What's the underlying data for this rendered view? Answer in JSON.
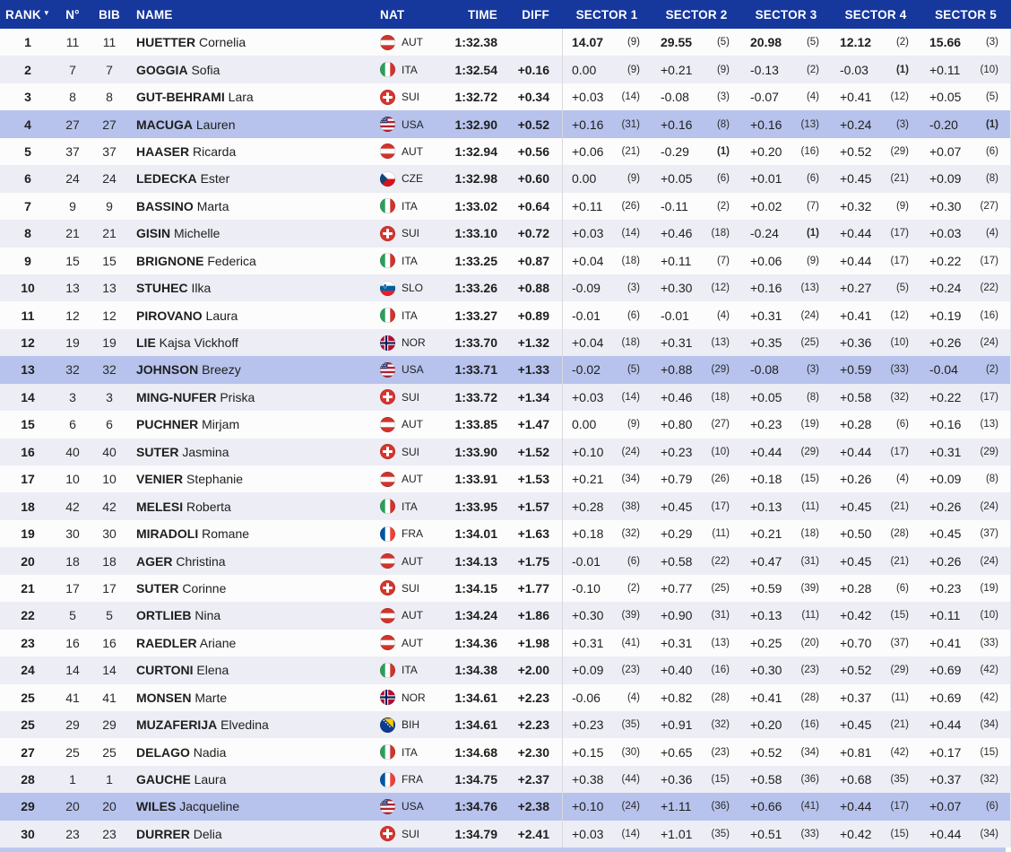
{
  "colors": {
    "header_bg": "#16389d",
    "row_alt_bg": "#ededf5",
    "row_highlight_bg": "#b7c3ec",
    "bottom_strip": "#b9c8ee"
  },
  "header": {
    "rank": "RANK",
    "sort_icon": "▼",
    "n": "N°",
    "bib": "BIB",
    "name": "NAME",
    "nat": "NAT",
    "time": "TIME",
    "diff": "DIFF",
    "sectors": [
      "SECTOR 1",
      "SECTOR 2",
      "SECTOR 3",
      "SECTOR 4",
      "SECTOR 5"
    ]
  },
  "rows": [
    {
      "rank": "1",
      "n": "11",
      "bib": "11",
      "last": "HUETTER",
      "first": "Cornelia",
      "nat": "AUT",
      "time": "1:32.38",
      "diff": "",
      "leader": true,
      "highlight": false,
      "sectors": [
        {
          "v": "14.07",
          "r": "(9)"
        },
        {
          "v": "29.55",
          "r": "(5)"
        },
        {
          "v": "20.98",
          "r": "(5)"
        },
        {
          "v": "12.12",
          "r": "(2)"
        },
        {
          "v": "15.66",
          "r": "(3)"
        }
      ]
    },
    {
      "rank": "2",
      "n": "7",
      "bib": "7",
      "last": "GOGGIA",
      "first": "Sofia",
      "nat": "ITA",
      "time": "1:32.54",
      "diff": "+0.16",
      "leader": false,
      "highlight": false,
      "sectors": [
        {
          "v": "0.00",
          "r": "(9)"
        },
        {
          "v": "+0.21",
          "r": "(9)"
        },
        {
          "v": "-0.13",
          "r": "(2)"
        },
        {
          "v": "-0.03",
          "r": "(1)"
        },
        {
          "v": "+0.11",
          "r": "(10)"
        }
      ]
    },
    {
      "rank": "3",
      "n": "8",
      "bib": "8",
      "last": "GUT-BEHRAMI",
      "first": "Lara",
      "nat": "SUI",
      "time": "1:32.72",
      "diff": "+0.34",
      "leader": false,
      "highlight": false,
      "sectors": [
        {
          "v": "+0.03",
          "r": "(14)"
        },
        {
          "v": "-0.08",
          "r": "(3)"
        },
        {
          "v": "-0.07",
          "r": "(4)"
        },
        {
          "v": "+0.41",
          "r": "(12)"
        },
        {
          "v": "+0.05",
          "r": "(5)"
        }
      ]
    },
    {
      "rank": "4",
      "n": "27",
      "bib": "27",
      "last": "MACUGA",
      "first": "Lauren",
      "nat": "USA",
      "time": "1:32.90",
      "diff": "+0.52",
      "leader": false,
      "highlight": true,
      "sectors": [
        {
          "v": "+0.16",
          "r": "(31)"
        },
        {
          "v": "+0.16",
          "r": "(8)"
        },
        {
          "v": "+0.16",
          "r": "(13)"
        },
        {
          "v": "+0.24",
          "r": "(3)"
        },
        {
          "v": "-0.20",
          "r": "(1)"
        }
      ]
    },
    {
      "rank": "5",
      "n": "37",
      "bib": "37",
      "last": "HAASER",
      "first": "Ricarda",
      "nat": "AUT",
      "time": "1:32.94",
      "diff": "+0.56",
      "leader": false,
      "highlight": false,
      "sectors": [
        {
          "v": "+0.06",
          "r": "(21)"
        },
        {
          "v": "-0.29",
          "r": "(1)"
        },
        {
          "v": "+0.20",
          "r": "(16)"
        },
        {
          "v": "+0.52",
          "r": "(29)"
        },
        {
          "v": "+0.07",
          "r": "(6)"
        }
      ]
    },
    {
      "rank": "6",
      "n": "24",
      "bib": "24",
      "last": "LEDECKA",
      "first": "Ester",
      "nat": "CZE",
      "time": "1:32.98",
      "diff": "+0.60",
      "leader": false,
      "highlight": false,
      "sectors": [
        {
          "v": "0.00",
          "r": "(9)"
        },
        {
          "v": "+0.05",
          "r": "(6)"
        },
        {
          "v": "+0.01",
          "r": "(6)"
        },
        {
          "v": "+0.45",
          "r": "(21)"
        },
        {
          "v": "+0.09",
          "r": "(8)"
        }
      ]
    },
    {
      "rank": "7",
      "n": "9",
      "bib": "9",
      "last": "BASSINO",
      "first": "Marta",
      "nat": "ITA",
      "time": "1:33.02",
      "diff": "+0.64",
      "leader": false,
      "highlight": false,
      "sectors": [
        {
          "v": "+0.11",
          "r": "(26)"
        },
        {
          "v": "-0.11",
          "r": "(2)"
        },
        {
          "v": "+0.02",
          "r": "(7)"
        },
        {
          "v": "+0.32",
          "r": "(9)"
        },
        {
          "v": "+0.30",
          "r": "(27)"
        }
      ]
    },
    {
      "rank": "8",
      "n": "21",
      "bib": "21",
      "last": "GISIN",
      "first": "Michelle",
      "nat": "SUI",
      "time": "1:33.10",
      "diff": "+0.72",
      "leader": false,
      "highlight": false,
      "sectors": [
        {
          "v": "+0.03",
          "r": "(14)"
        },
        {
          "v": "+0.46",
          "r": "(18)"
        },
        {
          "v": "-0.24",
          "r": "(1)"
        },
        {
          "v": "+0.44",
          "r": "(17)"
        },
        {
          "v": "+0.03",
          "r": "(4)"
        }
      ]
    },
    {
      "rank": "9",
      "n": "15",
      "bib": "15",
      "last": "BRIGNONE",
      "first": "Federica",
      "nat": "ITA",
      "time": "1:33.25",
      "diff": "+0.87",
      "leader": false,
      "highlight": false,
      "sectors": [
        {
          "v": "+0.04",
          "r": "(18)"
        },
        {
          "v": "+0.11",
          "r": "(7)"
        },
        {
          "v": "+0.06",
          "r": "(9)"
        },
        {
          "v": "+0.44",
          "r": "(17)"
        },
        {
          "v": "+0.22",
          "r": "(17)"
        }
      ]
    },
    {
      "rank": "10",
      "n": "13",
      "bib": "13",
      "last": "STUHEC",
      "first": "Ilka",
      "nat": "SLO",
      "time": "1:33.26",
      "diff": "+0.88",
      "leader": false,
      "highlight": false,
      "sectors": [
        {
          "v": "-0.09",
          "r": "(3)"
        },
        {
          "v": "+0.30",
          "r": "(12)"
        },
        {
          "v": "+0.16",
          "r": "(13)"
        },
        {
          "v": "+0.27",
          "r": "(5)"
        },
        {
          "v": "+0.24",
          "r": "(22)"
        }
      ]
    },
    {
      "rank": "11",
      "n": "12",
      "bib": "12",
      "last": "PIROVANO",
      "first": "Laura",
      "nat": "ITA",
      "time": "1:33.27",
      "diff": "+0.89",
      "leader": false,
      "highlight": false,
      "sectors": [
        {
          "v": "-0.01",
          "r": "(6)"
        },
        {
          "v": "-0.01",
          "r": "(4)"
        },
        {
          "v": "+0.31",
          "r": "(24)"
        },
        {
          "v": "+0.41",
          "r": "(12)"
        },
        {
          "v": "+0.19",
          "r": "(16)"
        }
      ]
    },
    {
      "rank": "12",
      "n": "19",
      "bib": "19",
      "last": "LIE",
      "first": "Kajsa Vickhoff",
      "nat": "NOR",
      "time": "1:33.70",
      "diff": "+1.32",
      "leader": false,
      "highlight": false,
      "sectors": [
        {
          "v": "+0.04",
          "r": "(18)"
        },
        {
          "v": "+0.31",
          "r": "(13)"
        },
        {
          "v": "+0.35",
          "r": "(25)"
        },
        {
          "v": "+0.36",
          "r": "(10)"
        },
        {
          "v": "+0.26",
          "r": "(24)"
        }
      ]
    },
    {
      "rank": "13",
      "n": "32",
      "bib": "32",
      "last": "JOHNSON",
      "first": "Breezy",
      "nat": "USA",
      "time": "1:33.71",
      "diff": "+1.33",
      "leader": false,
      "highlight": true,
      "sectors": [
        {
          "v": "-0.02",
          "r": "(5)"
        },
        {
          "v": "+0.88",
          "r": "(29)"
        },
        {
          "v": "-0.08",
          "r": "(3)"
        },
        {
          "v": "+0.59",
          "r": "(33)"
        },
        {
          "v": "-0.04",
          "r": "(2)"
        }
      ]
    },
    {
      "rank": "14",
      "n": "3",
      "bib": "3",
      "last": "MING-NUFER",
      "first": "Priska",
      "nat": "SUI",
      "time": "1:33.72",
      "diff": "+1.34",
      "leader": false,
      "highlight": false,
      "sectors": [
        {
          "v": "+0.03",
          "r": "(14)"
        },
        {
          "v": "+0.46",
          "r": "(18)"
        },
        {
          "v": "+0.05",
          "r": "(8)"
        },
        {
          "v": "+0.58",
          "r": "(32)"
        },
        {
          "v": "+0.22",
          "r": "(17)"
        }
      ]
    },
    {
      "rank": "15",
      "n": "6",
      "bib": "6",
      "last": "PUCHNER",
      "first": "Mirjam",
      "nat": "AUT",
      "time": "1:33.85",
      "diff": "+1.47",
      "leader": false,
      "highlight": false,
      "sectors": [
        {
          "v": "0.00",
          "r": "(9)"
        },
        {
          "v": "+0.80",
          "r": "(27)"
        },
        {
          "v": "+0.23",
          "r": "(19)"
        },
        {
          "v": "+0.28",
          "r": "(6)"
        },
        {
          "v": "+0.16",
          "r": "(13)"
        }
      ]
    },
    {
      "rank": "16",
      "n": "40",
      "bib": "40",
      "last": "SUTER",
      "first": "Jasmina",
      "nat": "SUI",
      "time": "1:33.90",
      "diff": "+1.52",
      "leader": false,
      "highlight": false,
      "sectors": [
        {
          "v": "+0.10",
          "r": "(24)"
        },
        {
          "v": "+0.23",
          "r": "(10)"
        },
        {
          "v": "+0.44",
          "r": "(29)"
        },
        {
          "v": "+0.44",
          "r": "(17)"
        },
        {
          "v": "+0.31",
          "r": "(29)"
        }
      ]
    },
    {
      "rank": "17",
      "n": "10",
      "bib": "10",
      "last": "VENIER",
      "first": "Stephanie",
      "nat": "AUT",
      "time": "1:33.91",
      "diff": "+1.53",
      "leader": false,
      "highlight": false,
      "sectors": [
        {
          "v": "+0.21",
          "r": "(34)"
        },
        {
          "v": "+0.79",
          "r": "(26)"
        },
        {
          "v": "+0.18",
          "r": "(15)"
        },
        {
          "v": "+0.26",
          "r": "(4)"
        },
        {
          "v": "+0.09",
          "r": "(8)"
        }
      ]
    },
    {
      "rank": "18",
      "n": "42",
      "bib": "42",
      "last": "MELESI",
      "first": "Roberta",
      "nat": "ITA",
      "time": "1:33.95",
      "diff": "+1.57",
      "leader": false,
      "highlight": false,
      "sectors": [
        {
          "v": "+0.28",
          "r": "(38)"
        },
        {
          "v": "+0.45",
          "r": "(17)"
        },
        {
          "v": "+0.13",
          "r": "(11)"
        },
        {
          "v": "+0.45",
          "r": "(21)"
        },
        {
          "v": "+0.26",
          "r": "(24)"
        }
      ]
    },
    {
      "rank": "19",
      "n": "30",
      "bib": "30",
      "last": "MIRADOLI",
      "first": "Romane",
      "nat": "FRA",
      "time": "1:34.01",
      "diff": "+1.63",
      "leader": false,
      "highlight": false,
      "sectors": [
        {
          "v": "+0.18",
          "r": "(32)"
        },
        {
          "v": "+0.29",
          "r": "(11)"
        },
        {
          "v": "+0.21",
          "r": "(18)"
        },
        {
          "v": "+0.50",
          "r": "(28)"
        },
        {
          "v": "+0.45",
          "r": "(37)"
        }
      ]
    },
    {
      "rank": "20",
      "n": "18",
      "bib": "18",
      "last": "AGER",
      "first": "Christina",
      "nat": "AUT",
      "time": "1:34.13",
      "diff": "+1.75",
      "leader": false,
      "highlight": false,
      "sectors": [
        {
          "v": "-0.01",
          "r": "(6)"
        },
        {
          "v": "+0.58",
          "r": "(22)"
        },
        {
          "v": "+0.47",
          "r": "(31)"
        },
        {
          "v": "+0.45",
          "r": "(21)"
        },
        {
          "v": "+0.26",
          "r": "(24)"
        }
      ]
    },
    {
      "rank": "21",
      "n": "17",
      "bib": "17",
      "last": "SUTER",
      "first": "Corinne",
      "nat": "SUI",
      "time": "1:34.15",
      "diff": "+1.77",
      "leader": false,
      "highlight": false,
      "sectors": [
        {
          "v": "-0.10",
          "r": "(2)"
        },
        {
          "v": "+0.77",
          "r": "(25)"
        },
        {
          "v": "+0.59",
          "r": "(39)"
        },
        {
          "v": "+0.28",
          "r": "(6)"
        },
        {
          "v": "+0.23",
          "r": "(19)"
        }
      ]
    },
    {
      "rank": "22",
      "n": "5",
      "bib": "5",
      "last": "ORTLIEB",
      "first": "Nina",
      "nat": "AUT",
      "time": "1:34.24",
      "diff": "+1.86",
      "leader": false,
      "highlight": false,
      "sectors": [
        {
          "v": "+0.30",
          "r": "(39)"
        },
        {
          "v": "+0.90",
          "r": "(31)"
        },
        {
          "v": "+0.13",
          "r": "(11)"
        },
        {
          "v": "+0.42",
          "r": "(15)"
        },
        {
          "v": "+0.11",
          "r": "(10)"
        }
      ]
    },
    {
      "rank": "23",
      "n": "16",
      "bib": "16",
      "last": "RAEDLER",
      "first": "Ariane",
      "nat": "AUT",
      "time": "1:34.36",
      "diff": "+1.98",
      "leader": false,
      "highlight": false,
      "sectors": [
        {
          "v": "+0.31",
          "r": "(41)"
        },
        {
          "v": "+0.31",
          "r": "(13)"
        },
        {
          "v": "+0.25",
          "r": "(20)"
        },
        {
          "v": "+0.70",
          "r": "(37)"
        },
        {
          "v": "+0.41",
          "r": "(33)"
        }
      ]
    },
    {
      "rank": "24",
      "n": "14",
      "bib": "14",
      "last": "CURTONI",
      "first": "Elena",
      "nat": "ITA",
      "time": "1:34.38",
      "diff": "+2.00",
      "leader": false,
      "highlight": false,
      "sectors": [
        {
          "v": "+0.09",
          "r": "(23)"
        },
        {
          "v": "+0.40",
          "r": "(16)"
        },
        {
          "v": "+0.30",
          "r": "(23)"
        },
        {
          "v": "+0.52",
          "r": "(29)"
        },
        {
          "v": "+0.69",
          "r": "(42)"
        }
      ]
    },
    {
      "rank": "25",
      "n": "41",
      "bib": "41",
      "last": "MONSEN",
      "first": "Marte",
      "nat": "NOR",
      "time": "1:34.61",
      "diff": "+2.23",
      "leader": false,
      "highlight": false,
      "sectors": [
        {
          "v": "-0.06",
          "r": "(4)"
        },
        {
          "v": "+0.82",
          "r": "(28)"
        },
        {
          "v": "+0.41",
          "r": "(28)"
        },
        {
          "v": "+0.37",
          "r": "(11)"
        },
        {
          "v": "+0.69",
          "r": "(42)"
        }
      ]
    },
    {
      "rank": "25",
      "n": "29",
      "bib": "29",
      "last": "MUZAFERIJA",
      "first": "Elvedina",
      "nat": "BIH",
      "time": "1:34.61",
      "diff": "+2.23",
      "leader": false,
      "highlight": false,
      "sectors": [
        {
          "v": "+0.23",
          "r": "(35)"
        },
        {
          "v": "+0.91",
          "r": "(32)"
        },
        {
          "v": "+0.20",
          "r": "(16)"
        },
        {
          "v": "+0.45",
          "r": "(21)"
        },
        {
          "v": "+0.44",
          "r": "(34)"
        }
      ]
    },
    {
      "rank": "27",
      "n": "25",
      "bib": "25",
      "last": "DELAGO",
      "first": "Nadia",
      "nat": "ITA",
      "time": "1:34.68",
      "diff": "+2.30",
      "leader": false,
      "highlight": false,
      "sectors": [
        {
          "v": "+0.15",
          "r": "(30)"
        },
        {
          "v": "+0.65",
          "r": "(23)"
        },
        {
          "v": "+0.52",
          "r": "(34)"
        },
        {
          "v": "+0.81",
          "r": "(42)"
        },
        {
          "v": "+0.17",
          "r": "(15)"
        }
      ]
    },
    {
      "rank": "28",
      "n": "1",
      "bib": "1",
      "last": "GAUCHE",
      "first": "Laura",
      "nat": "FRA",
      "time": "1:34.75",
      "diff": "+2.37",
      "leader": false,
      "highlight": false,
      "sectors": [
        {
          "v": "+0.38",
          "r": "(44)"
        },
        {
          "v": "+0.36",
          "r": "(15)"
        },
        {
          "v": "+0.58",
          "r": "(36)"
        },
        {
          "v": "+0.68",
          "r": "(35)"
        },
        {
          "v": "+0.37",
          "r": "(32)"
        }
      ]
    },
    {
      "rank": "29",
      "n": "20",
      "bib": "20",
      "last": "WILES",
      "first": "Jacqueline",
      "nat": "USA",
      "time": "1:34.76",
      "diff": "+2.38",
      "leader": false,
      "highlight": true,
      "sectors": [
        {
          "v": "+0.10",
          "r": "(24)"
        },
        {
          "v": "+1.11",
          "r": "(36)"
        },
        {
          "v": "+0.66",
          "r": "(41)"
        },
        {
          "v": "+0.44",
          "r": "(17)"
        },
        {
          "v": "+0.07",
          "r": "(6)"
        }
      ]
    },
    {
      "rank": "30",
      "n": "23",
      "bib": "23",
      "last": "DURRER",
      "first": "Delia",
      "nat": "SUI",
      "time": "1:34.79",
      "diff": "+2.41",
      "leader": false,
      "highlight": false,
      "sectors": [
        {
          "v": "+0.03",
          "r": "(14)"
        },
        {
          "v": "+1.01",
          "r": "(35)"
        },
        {
          "v": "+0.51",
          "r": "(33)"
        },
        {
          "v": "+0.42",
          "r": "(15)"
        },
        {
          "v": "+0.44",
          "r": "(34)"
        }
      ]
    }
  ]
}
